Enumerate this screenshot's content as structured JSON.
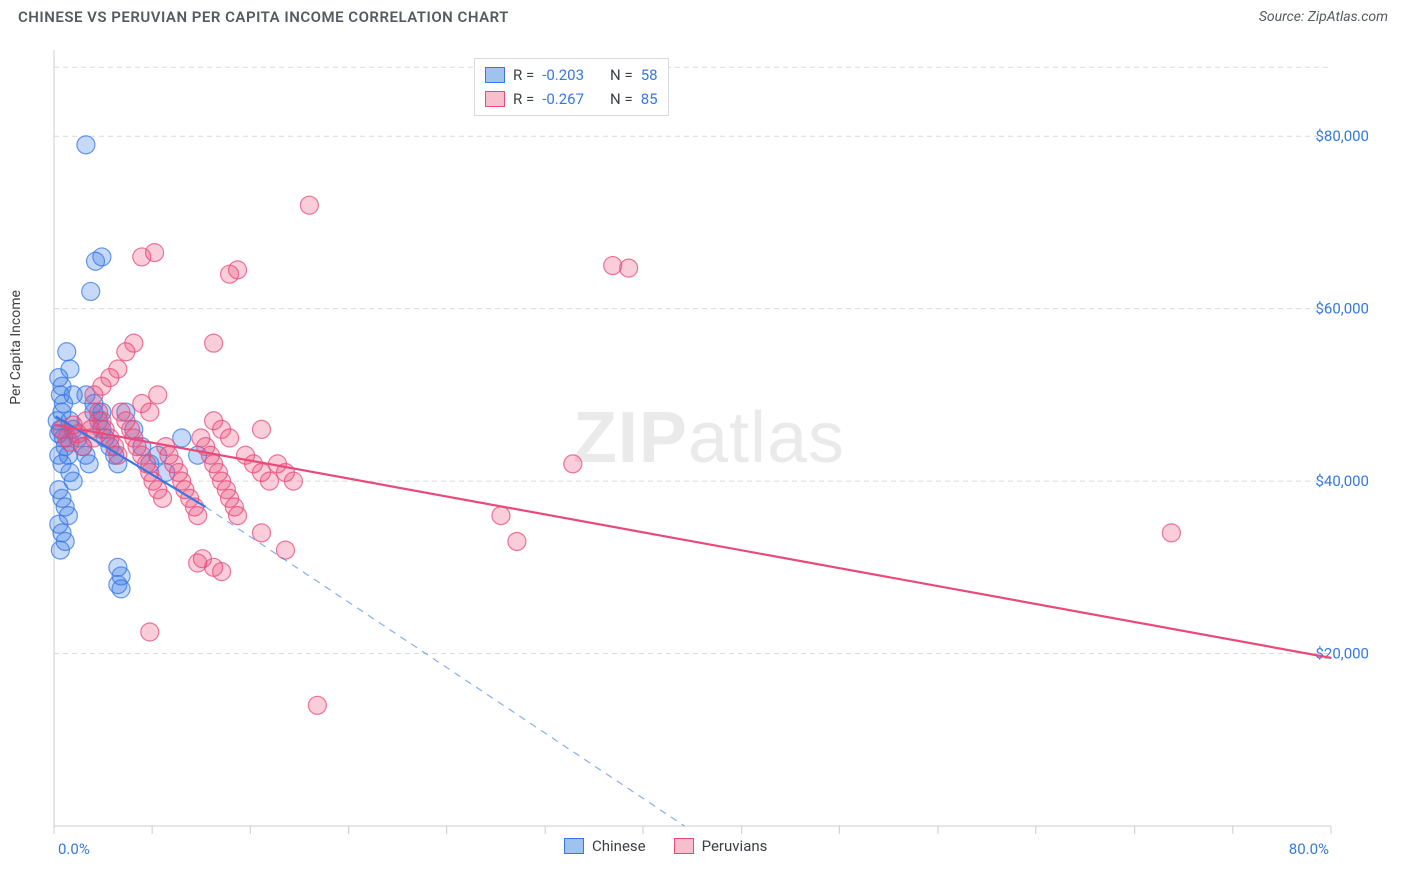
{
  "chart": {
    "title": "CHINESE VS PERUVIAN PER CAPITA INCOME CORRELATION CHART",
    "source": "Source: ZipAtlas.com",
    "ylabel": "Per Capita Income",
    "x_min_label": "0.0%",
    "x_max_label": "80.0%",
    "watermark_a": "ZIP",
    "watermark_b": "atlas",
    "type": "scatter",
    "background_color": "#ffffff",
    "grid_color": "#d7dbdf",
    "xlim": [
      0,
      80
    ],
    "ylim": [
      0,
      90000
    ],
    "x_ticks": [
      0,
      6.15,
      12.3,
      18.46,
      24.6,
      30.77,
      36.9,
      43.08,
      49.2,
      55.38,
      61.5,
      67.7,
      73.85,
      80
    ],
    "y_ticks": [
      20000,
      40000,
      60000,
      80000
    ],
    "y_tick_labels": [
      "$20,000",
      "$40,000",
      "$60,000",
      "$80,000"
    ],
    "y_grid": [
      20000,
      40000,
      60000,
      80000,
      88000
    ],
    "title_fontsize": 15,
    "label_fontsize": 14,
    "tick_fontsize": 15,
    "marker_radius": 9,
    "marker_stroke_width": 1.2,
    "marker_fill_opacity": 0.28,
    "trend_line_width": 2.2,
    "legend_bottom": [
      {
        "label": "Chinese",
        "fill": "#9fc3ee",
        "stroke": "#3478e5"
      },
      {
        "label": "Peruvians",
        "fill": "#f5bfce",
        "stroke": "#e84a7a"
      }
    ],
    "stats_box": {
      "rows": [
        {
          "swatch_fill": "#9fc3ee",
          "swatch_stroke": "#3478e5",
          "r_label": "R =",
          "r_val": "-0.203",
          "n_label": "N =",
          "n_val": "58"
        },
        {
          "swatch_fill": "#f5bfce",
          "swatch_stroke": "#e84a7a",
          "r_label": "R =",
          "r_val": "-0.267",
          "n_label": "N =",
          "n_val": "85"
        }
      ]
    },
    "series": [
      {
        "name": "Chinese",
        "color_stroke": "#3478e5",
        "color_fill": "#3478e5",
        "trend_solid": {
          "x1": 0.1,
          "y1": 47500,
          "x2": 9.5,
          "y2": 37000
        },
        "trend_dashed": {
          "x1": 9.5,
          "y1": 37000,
          "x2": 39.5,
          "y2": 0
        },
        "points": [
          [
            0.2,
            47000
          ],
          [
            0.3,
            45500
          ],
          [
            0.4,
            46000
          ],
          [
            0.5,
            48000
          ],
          [
            0.6,
            45000
          ],
          [
            0.4,
            50000
          ],
          [
            0.3,
            52000
          ],
          [
            0.5,
            51000
          ],
          [
            0.6,
            49000
          ],
          [
            0.3,
            43000
          ],
          [
            0.5,
            42000
          ],
          [
            0.7,
            44000
          ],
          [
            0.9,
            43000
          ],
          [
            1.0,
            41000
          ],
          [
            1.2,
            40000
          ],
          [
            0.3,
            39000
          ],
          [
            0.5,
            38000
          ],
          [
            0.7,
            37000
          ],
          [
            0.9,
            36000
          ],
          [
            0.3,
            35000
          ],
          [
            0.5,
            34000
          ],
          [
            0.7,
            33000
          ],
          [
            0.4,
            32000
          ],
          [
            1.0,
            47000
          ],
          [
            1.2,
            46000
          ],
          [
            1.5,
            45000
          ],
          [
            1.8,
            44000
          ],
          [
            2.0,
            43000
          ],
          [
            2.2,
            42000
          ],
          [
            2.5,
            48000
          ],
          [
            2.8,
            47000
          ],
          [
            3.0,
            46000
          ],
          [
            3.2,
            45000
          ],
          [
            3.5,
            44000
          ],
          [
            3.8,
            43000
          ],
          [
            4.0,
            42000
          ],
          [
            4.5,
            48000
          ],
          [
            5.0,
            46000
          ],
          [
            5.5,
            44000
          ],
          [
            6.0,
            42000
          ],
          [
            6.5,
            43000
          ],
          [
            7.0,
            41000
          ],
          [
            8.0,
            45000
          ],
          [
            9.0,
            43000
          ],
          [
            2.0,
            79000
          ],
          [
            2.3,
            62000
          ],
          [
            2.6,
            65500
          ],
          [
            3.0,
            66000
          ],
          [
            0.8,
            55000
          ],
          [
            1.0,
            53000
          ],
          [
            1.2,
            50000
          ],
          [
            2.0,
            50000
          ],
          [
            2.5,
            49000
          ],
          [
            3.0,
            48000
          ],
          [
            4.0,
            30000
          ],
          [
            4.2,
            29000
          ],
          [
            4.0,
            28000
          ],
          [
            4.2,
            27500
          ]
        ]
      },
      {
        "name": "Peruvians",
        "color_stroke": "#e84a7a",
        "color_fill": "#e84a7a",
        "trend_solid": {
          "x1": 0.1,
          "y1": 46500,
          "x2": 80,
          "y2": 19500
        },
        "trend_dashed": null,
        "points": [
          [
            0.5,
            46000
          ],
          [
            0.8,
            45000
          ],
          [
            1.0,
            44500
          ],
          [
            1.2,
            46500
          ],
          [
            1.5,
            45500
          ],
          [
            1.8,
            44000
          ],
          [
            2.0,
            47000
          ],
          [
            2.3,
            46000
          ],
          [
            2.5,
            45000
          ],
          [
            2.8,
            48000
          ],
          [
            3.0,
            47000
          ],
          [
            3.2,
            46000
          ],
          [
            3.5,
            45000
          ],
          [
            3.8,
            44000
          ],
          [
            4.0,
            43000
          ],
          [
            4.2,
            48000
          ],
          [
            4.5,
            47000
          ],
          [
            4.8,
            46000
          ],
          [
            5.0,
            45000
          ],
          [
            5.2,
            44000
          ],
          [
            5.5,
            43000
          ],
          [
            5.8,
            42000
          ],
          [
            6.0,
            41000
          ],
          [
            6.2,
            40000
          ],
          [
            6.5,
            39000
          ],
          [
            6.8,
            38000
          ],
          [
            7.0,
            44000
          ],
          [
            7.2,
            43000
          ],
          [
            7.5,
            42000
          ],
          [
            7.8,
            41000
          ],
          [
            8.0,
            40000
          ],
          [
            8.2,
            39000
          ],
          [
            8.5,
            38000
          ],
          [
            8.8,
            37000
          ],
          [
            9.0,
            36000
          ],
          [
            9.2,
            45000
          ],
          [
            9.5,
            44000
          ],
          [
            9.8,
            43000
          ],
          [
            10.0,
            42000
          ],
          [
            10.3,
            41000
          ],
          [
            10.5,
            40000
          ],
          [
            10.8,
            39000
          ],
          [
            11.0,
            38000
          ],
          [
            11.3,
            37000
          ],
          [
            11.5,
            36000
          ],
          [
            12.0,
            43000
          ],
          [
            12.5,
            42000
          ],
          [
            13.0,
            41000
          ],
          [
            13.5,
            40000
          ],
          [
            14.0,
            42000
          ],
          [
            14.5,
            41000
          ],
          [
            15.0,
            40000
          ],
          [
            9.0,
            30500
          ],
          [
            9.3,
            31000
          ],
          [
            10.0,
            30000
          ],
          [
            10.5,
            29500
          ],
          [
            14.5,
            32000
          ],
          [
            13.0,
            34000
          ],
          [
            10.0,
            56000
          ],
          [
            11.0,
            64000
          ],
          [
            11.5,
            64500
          ],
          [
            16.0,
            72000
          ],
          [
            5.5,
            66000
          ],
          [
            6.3,
            66500
          ],
          [
            10.0,
            47000
          ],
          [
            10.5,
            46000
          ],
          [
            11.0,
            45000
          ],
          [
            2.5,
            50000
          ],
          [
            3.0,
            51000
          ],
          [
            3.5,
            52000
          ],
          [
            4.0,
            53000
          ],
          [
            4.5,
            55000
          ],
          [
            5.0,
            56000
          ],
          [
            5.5,
            49000
          ],
          [
            6.0,
            48000
          ],
          [
            6.5,
            50000
          ],
          [
            6.0,
            22500
          ],
          [
            16.5,
            14000
          ],
          [
            28.0,
            36000
          ],
          [
            29.0,
            33000
          ],
          [
            13.0,
            46000
          ],
          [
            35.0,
            65000
          ],
          [
            36.0,
            64700
          ],
          [
            32.5,
            42000
          ],
          [
            70.0,
            34000
          ]
        ]
      }
    ]
  }
}
